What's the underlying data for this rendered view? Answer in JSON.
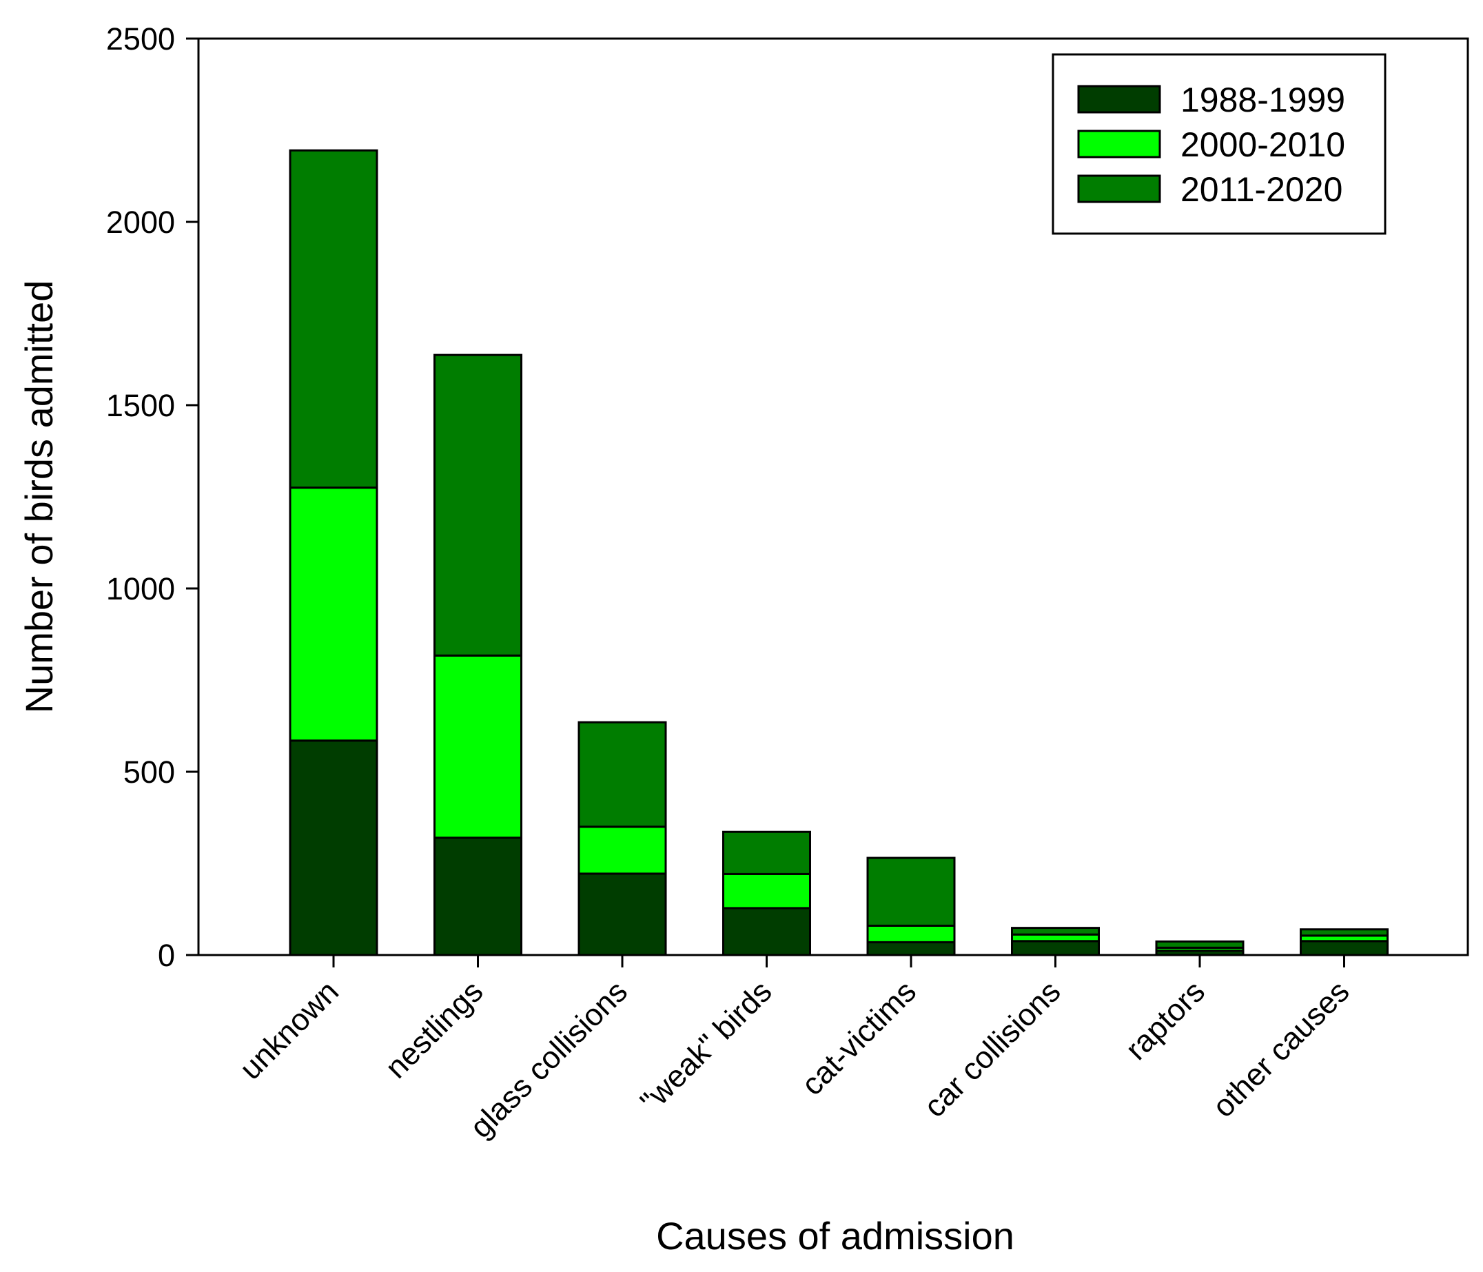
{
  "chart_data": {
    "type": "bar",
    "stacked": true,
    "title": "",
    "xlabel": "Causes of admission",
    "ylabel": "Number of birds admitted",
    "ylim": [
      0,
      2500
    ],
    "yticks": [
      0,
      500,
      1000,
      1500,
      2000,
      2500
    ],
    "grid": false,
    "legend_position": "top-right",
    "categories": [
      "unknown",
      "nestlings",
      "glass collisions",
      "\"weak\" birds",
      "cat-victims",
      "car collisions",
      "raptors",
      "other causes"
    ],
    "series": [
      {
        "name": "1988-1999",
        "color": "#003d00",
        "values": [
          585,
          320,
          222,
          128,
          35,
          38,
          12,
          38
        ]
      },
      {
        "name": "2000-2010",
        "color": "#00ff00",
        "values": [
          690,
          497,
          128,
          93,
          45,
          18,
          8,
          15
        ]
      },
      {
        "name": "2011-2020",
        "color": "#007d00",
        "values": [
          920,
          820,
          285,
          115,
          185,
          18,
          17,
          17
        ]
      }
    ]
  }
}
